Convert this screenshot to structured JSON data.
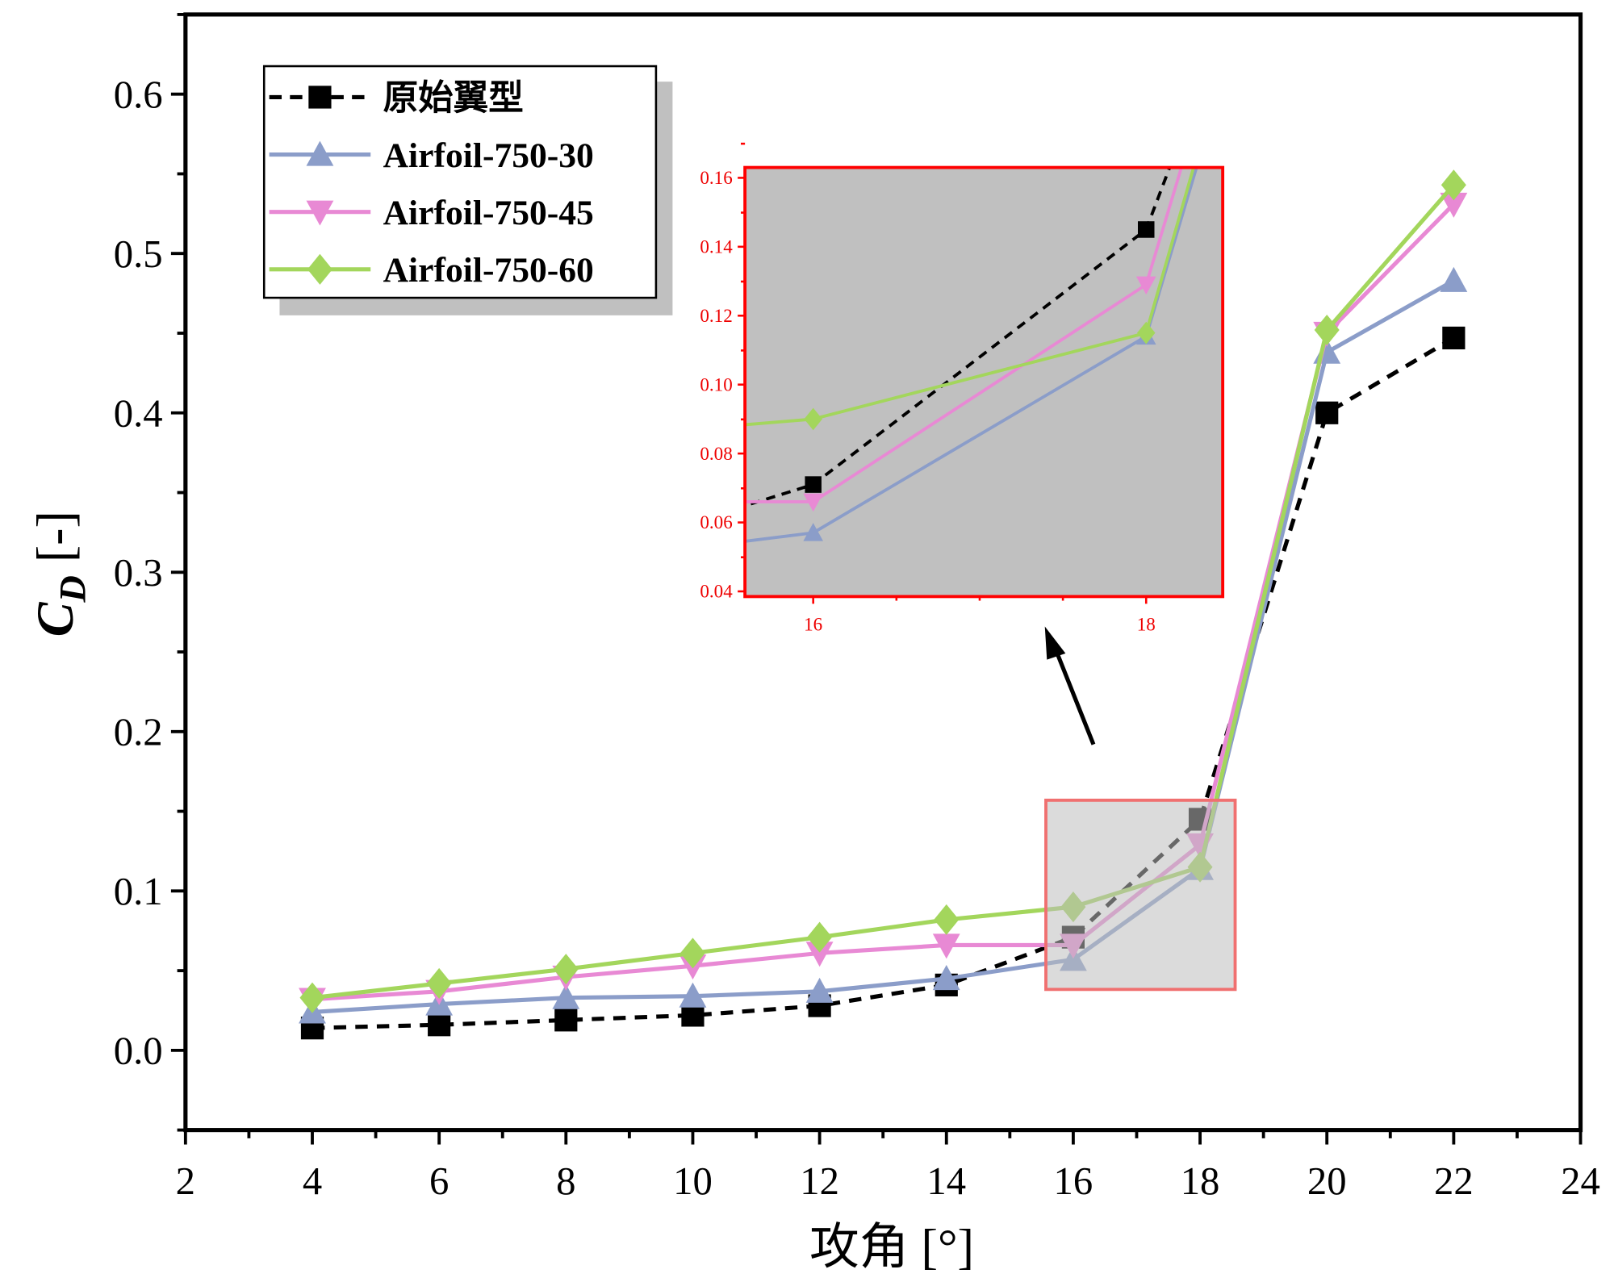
{
  "chart_data": {
    "type": "line",
    "xlabel": "攻角 [°]",
    "ylabel_main": "C",
    "ylabel_sub": "D",
    "ylabel_unit": " [-]",
    "xlim": [
      2,
      24
    ],
    "ylim": [
      -0.05,
      0.65
    ],
    "xticks": [
      "2",
      "4",
      "6",
      "8",
      "10",
      "12",
      "14",
      "16",
      "18",
      "20",
      "22",
      "24"
    ],
    "yticks": [
      "0.0",
      "0.1",
      "0.2",
      "0.3",
      "0.4",
      "0.5",
      "0.6"
    ],
    "x": [
      4,
      6,
      8,
      10,
      12,
      14,
      16,
      18,
      20,
      22
    ],
    "legend_position": "top-left",
    "series": [
      {
        "name": "原始翼型",
        "color": "#000000",
        "marker": "square",
        "dash": true,
        "values": [
          0.014,
          0.016,
          0.019,
          0.022,
          0.028,
          0.041,
          0.071,
          0.145,
          0.4,
          0.447
        ]
      },
      {
        "name": "Airfoil-750-30",
        "color": "#8b9dc9",
        "marker": "triangle-up",
        "dash": false,
        "values": [
          0.024,
          0.029,
          0.033,
          0.034,
          0.037,
          0.045,
          0.057,
          0.114,
          0.438,
          0.483
        ]
      },
      {
        "name": "Airfoil-750-45",
        "color": "#e889d4",
        "marker": "triangle-down",
        "dash": false,
        "values": [
          0.032,
          0.037,
          0.046,
          0.053,
          0.061,
          0.066,
          0.066,
          0.129,
          0.45,
          0.531
        ]
      },
      {
        "name": "Airfoil-750-60",
        "color": "#a3d65c",
        "marker": "diamond",
        "dash": false,
        "values": [
          0.033,
          0.042,
          0.051,
          0.061,
          0.071,
          0.082,
          0.09,
          0.115,
          0.452,
          0.543
        ]
      }
    ],
    "inset": {
      "xlim": [
        15.59,
        18.46
      ],
      "ylim": [
        0.0385,
        0.163
      ],
      "xticks": [
        "16",
        "18"
      ],
      "yticks": [
        "0.04",
        "0.06",
        "0.08",
        "0.10",
        "0.12",
        "0.14",
        "0.16"
      ],
      "frame_color": "#ff0000",
      "background": "#c0c0c0"
    }
  }
}
